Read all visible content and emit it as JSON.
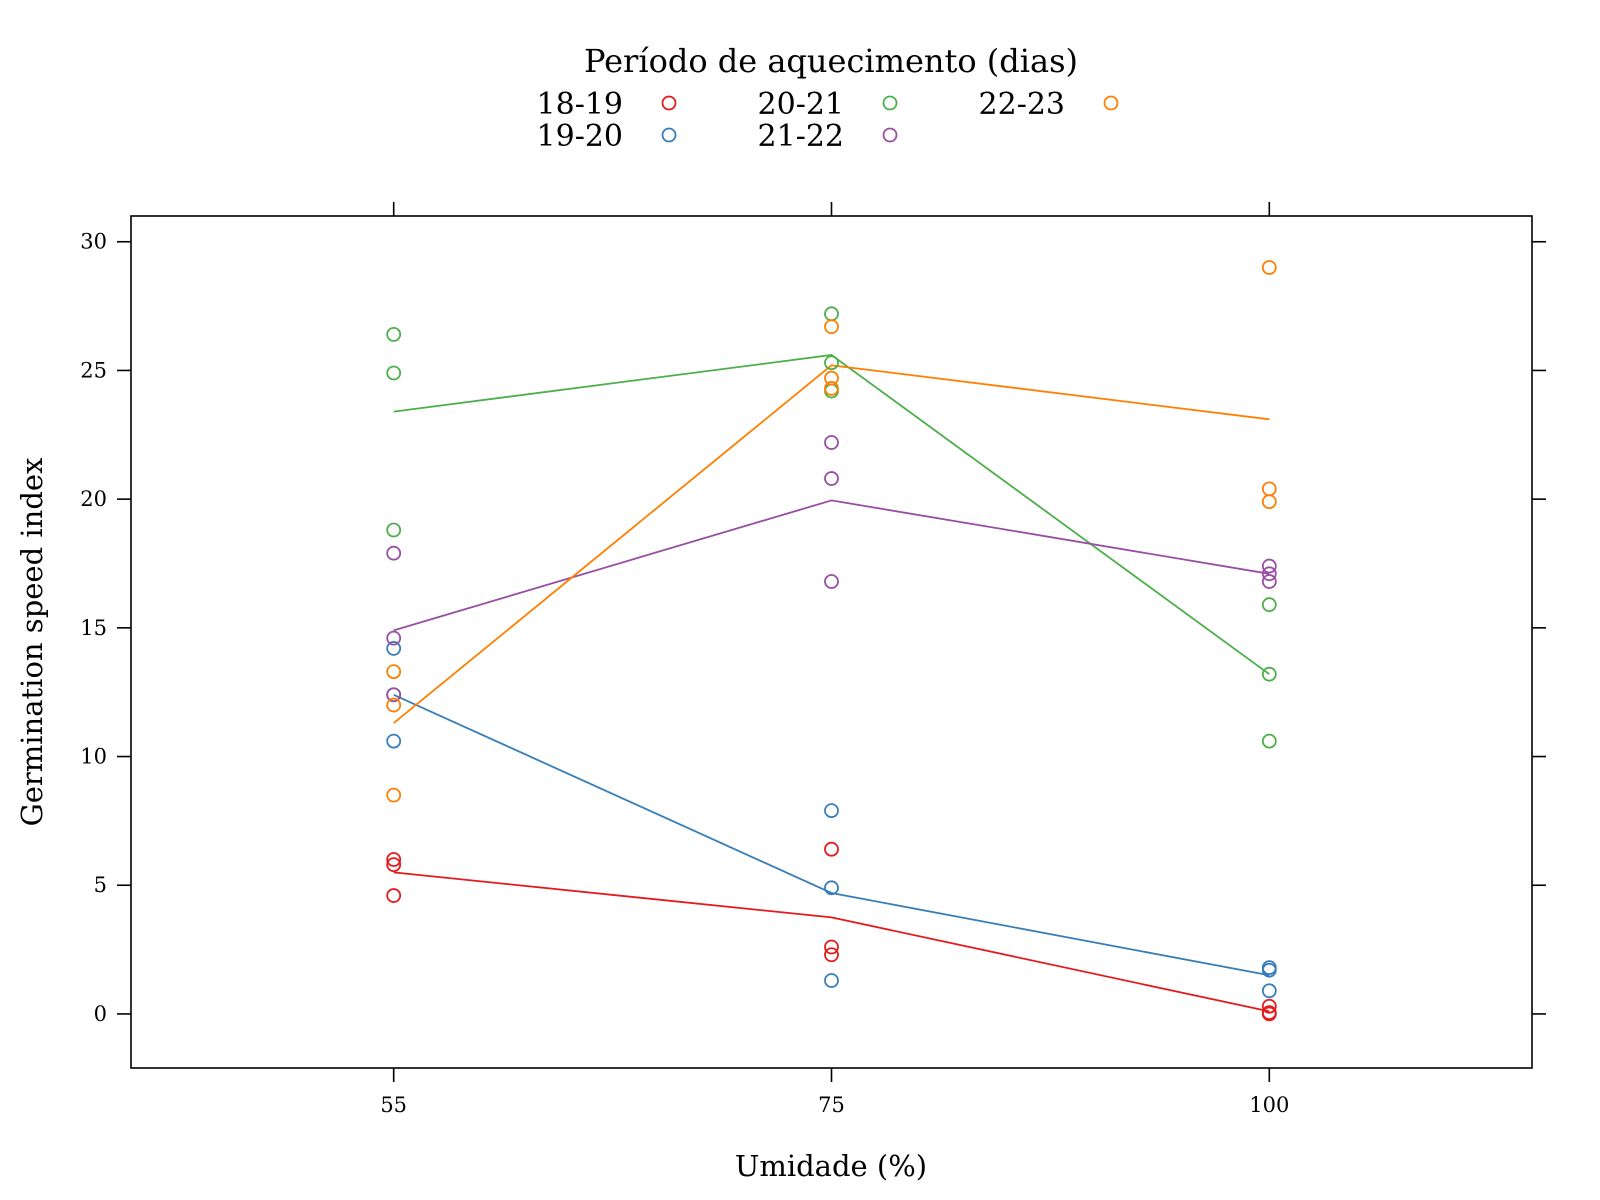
{
  "chart_data": {
    "type": "scatter",
    "title": "",
    "xlabel": "Umidade (%)",
    "ylabel": "Germination speed index",
    "x_categories": [
      "55",
      "75",
      "100"
    ],
    "xlim": [
      0.4,
      3.6
    ],
    "ylim": [
      -2.1,
      31.0
    ],
    "yticks": [
      0,
      5,
      10,
      15,
      20,
      25,
      30
    ],
    "grid": false,
    "legend": {
      "title": "Período de aquecimento (dias)",
      "placement": "top"
    },
    "series": [
      {
        "name": "18-19",
        "color": "#E41A1C",
        "points": [
          [
            1,
            6.0
          ],
          [
            1,
            5.8
          ],
          [
            1,
            4.6
          ],
          [
            2,
            6.4
          ],
          [
            2,
            2.6
          ],
          [
            2,
            2.3
          ],
          [
            3,
            0.3
          ],
          [
            3,
            0.05
          ],
          [
            3,
            0.0
          ]
        ],
        "line": [
          [
            1,
            5.5
          ],
          [
            2,
            3.75
          ],
          [
            3,
            0.1
          ]
        ]
      },
      {
        "name": "19-20",
        "color": "#377EB8",
        "points": [
          [
            1,
            14.2
          ],
          [
            1,
            12.4
          ],
          [
            1,
            10.6
          ],
          [
            2,
            7.9
          ],
          [
            2,
            4.9
          ],
          [
            2,
            1.3
          ],
          [
            3,
            1.8
          ],
          [
            3,
            1.7
          ],
          [
            3,
            0.9
          ]
        ],
        "line": [
          [
            1,
            12.4
          ],
          [
            2,
            4.7
          ],
          [
            3,
            1.5
          ]
        ]
      },
      {
        "name": "20-21",
        "color": "#4DAF4A",
        "points": [
          [
            1,
            26.4
          ],
          [
            1,
            24.9
          ],
          [
            1,
            18.8
          ],
          [
            2,
            27.2
          ],
          [
            2,
            25.3
          ],
          [
            2,
            24.2
          ],
          [
            3,
            15.9
          ],
          [
            3,
            13.2
          ],
          [
            3,
            10.6
          ]
        ],
        "line": [
          [
            1,
            23.4
          ],
          [
            2,
            25.6
          ],
          [
            3,
            13.2
          ]
        ]
      },
      {
        "name": "21-22",
        "color": "#984EA3",
        "points": [
          [
            1,
            17.9
          ],
          [
            1,
            14.6
          ],
          [
            1,
            12.4
          ],
          [
            2,
            22.2
          ],
          [
            2,
            20.8
          ],
          [
            2,
            16.8
          ],
          [
            3,
            17.4
          ],
          [
            3,
            17.1
          ],
          [
            3,
            16.8
          ]
        ],
        "line": [
          [
            1,
            14.9
          ],
          [
            2,
            19.95
          ],
          [
            3,
            17.1
          ]
        ]
      },
      {
        "name": "22-23",
        "color": "#FF7F00",
        "points": [
          [
            1,
            13.3
          ],
          [
            1,
            12.0
          ],
          [
            1,
            8.5
          ],
          [
            2,
            26.7
          ],
          [
            2,
            24.7
          ],
          [
            2,
            24.3
          ],
          [
            3,
            29.0
          ],
          [
            3,
            20.4
          ],
          [
            3,
            19.9
          ]
        ],
        "line": [
          [
            1,
            11.3
          ],
          [
            2,
            25.2
          ],
          [
            3,
            23.1
          ]
        ]
      }
    ]
  }
}
